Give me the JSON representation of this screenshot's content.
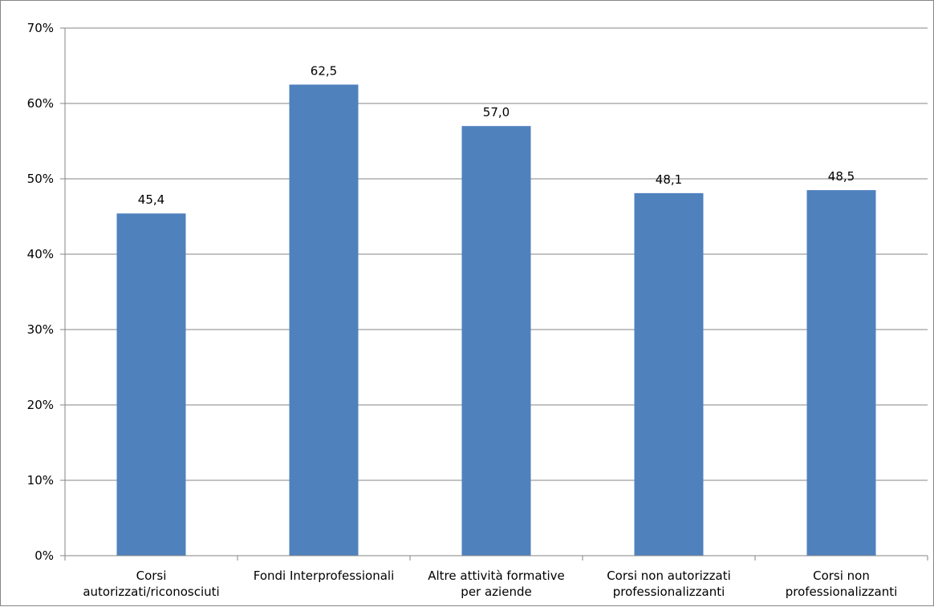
{
  "chart_data": {
    "type": "bar",
    "title": "",
    "xlabel": "",
    "ylabel": "",
    "categories": [
      [
        "Corsi",
        "autorizzati/riconosciuti"
      ],
      [
        "Fondi Interprofessionali"
      ],
      [
        "Altre attività formative",
        "per aziende"
      ],
      [
        "Corsi non autorizzati",
        "professionalizzanti"
      ],
      [
        "Corsi non",
        "professionalizzanti"
      ]
    ],
    "values": [
      45.4,
      62.5,
      57.0,
      48.1,
      48.5
    ],
    "data_labels": [
      "45,4",
      "62,5",
      "57,0",
      "48,1",
      "48,5"
    ],
    "ylim": [
      0,
      70
    ],
    "yticks": [
      0,
      10,
      20,
      30,
      40,
      50,
      60,
      70
    ],
    "ytick_labels": [
      "0%",
      "10%",
      "20%",
      "30%",
      "40%",
      "50%",
      "60%",
      "70%"
    ],
    "grid": true,
    "legend": "none",
    "bar_color": "#4F81BD",
    "grid_color": "#868686"
  }
}
